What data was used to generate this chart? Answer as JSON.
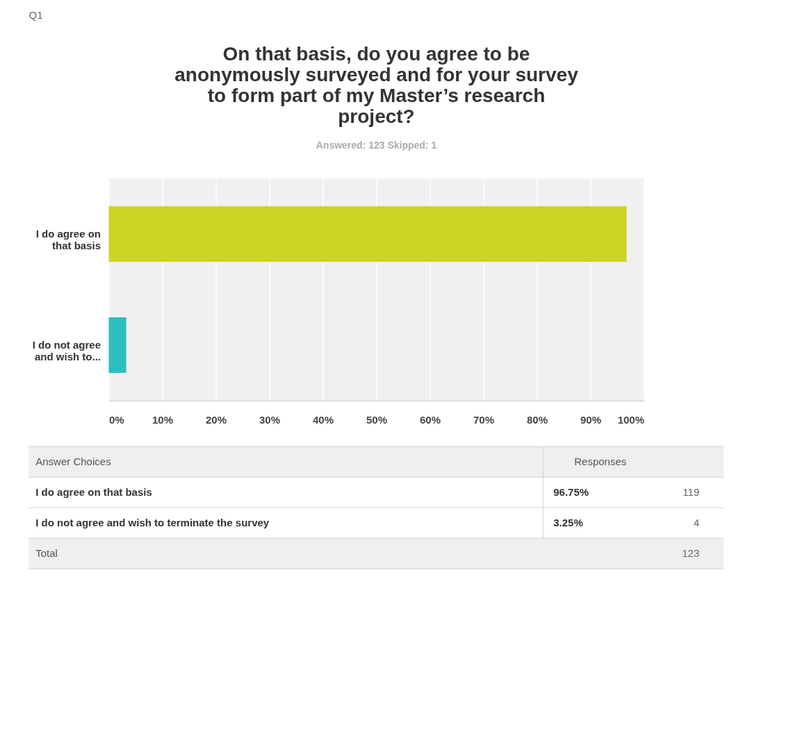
{
  "chart_data": {
    "type": "bar",
    "orientation": "horizontal",
    "title": "On that basis, do you agree to be anonymously surveyed and for your survey to form part of my Master’s research project?",
    "subtitle": "Answered: 123    Skipped: 1",
    "categories": [
      "I do agree on that basis",
      "I do not agree and wish to..."
    ],
    "values": [
      96.75,
      3.25
    ],
    "colors": [
      "#cdd422",
      "#2dbfbf"
    ],
    "xlim": [
      0,
      100
    ],
    "xticks": [
      {
        "value": 0,
        "label": "0%"
      },
      {
        "value": 10,
        "label": "10%"
      },
      {
        "value": 20,
        "label": "20%"
      },
      {
        "value": 30,
        "label": "30%"
      },
      {
        "value": 40,
        "label": "40%"
      },
      {
        "value": 50,
        "label": "50%"
      },
      {
        "value": 60,
        "label": "60%"
      },
      {
        "value": 70,
        "label": "70%"
      },
      {
        "value": 80,
        "label": "80%"
      },
      {
        "value": 90,
        "label": "90%"
      },
      {
        "value": 100,
        "label": "100%"
      }
    ],
    "grid": "x",
    "annotations": [
      "Q1",
      "Answer Choices",
      "Responses",
      "I do agree on that basis",
      "96.75%",
      "119",
      "I do not agree and wish to terminate the survey",
      "3.25%",
      "4",
      "Total",
      "123"
    ]
  }
}
